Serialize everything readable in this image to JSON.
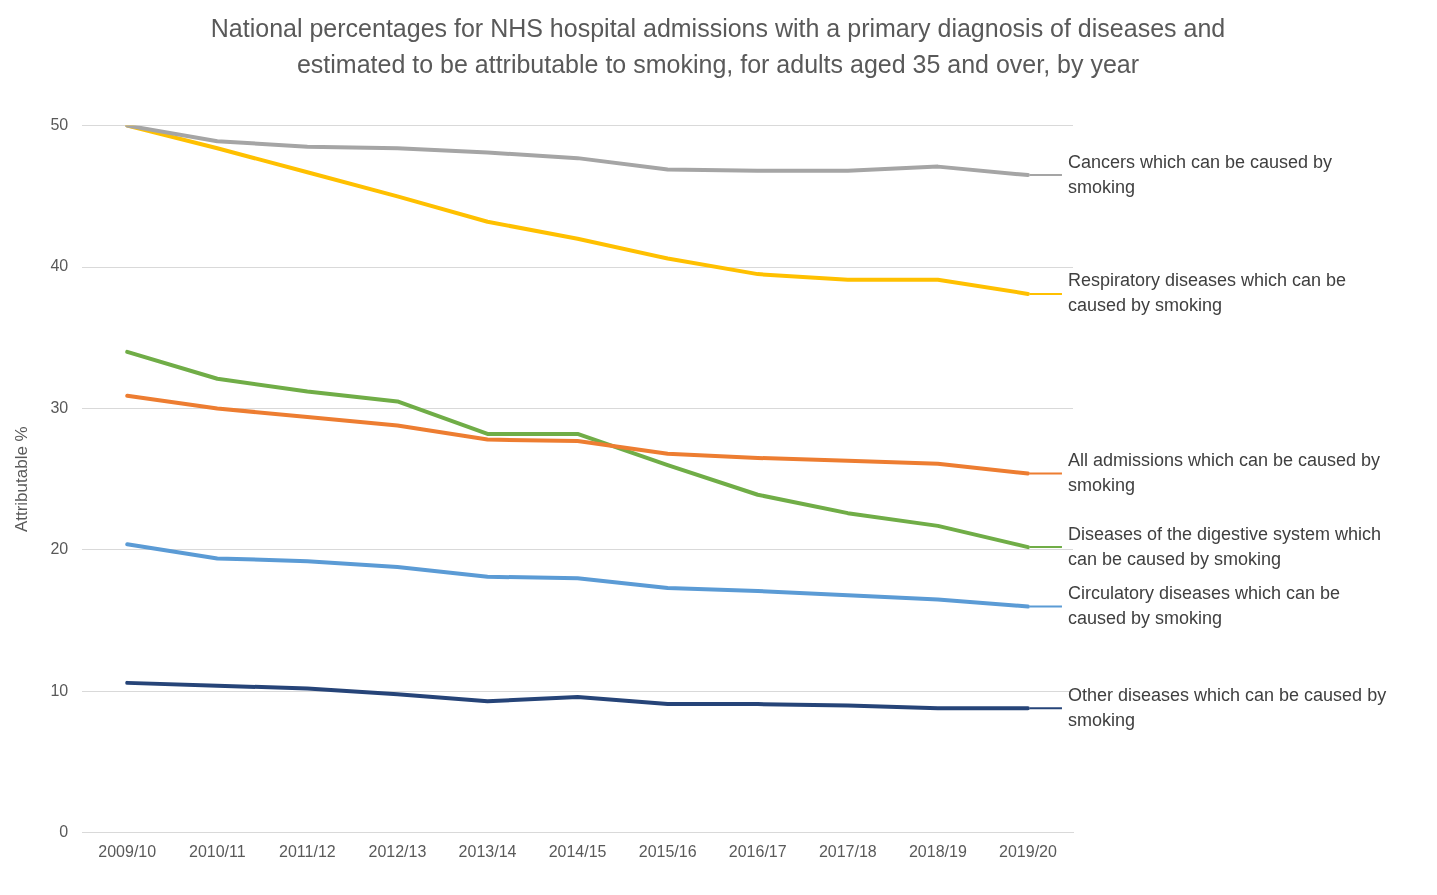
{
  "chart_data": {
    "type": "line",
    "title": "National percentages for NHS hospital admissions with a primary diagnosis of diseases and estimated to be attributable to smoking, for adults aged 35 and over, by year",
    "ylabel": "Attributable %",
    "categories": [
      "2009/10",
      "2010/11",
      "2011/12",
      "2012/13",
      "2013/14",
      "2014/15",
      "2015/16",
      "2016/17",
      "2017/18",
      "2018/19",
      "2019/20"
    ],
    "series": [
      {
        "name": "Cancers which can be caused by smoking",
        "color": "#a5a5a5",
        "values": [
          50.0,
          48.9,
          48.5,
          48.4,
          48.1,
          47.7,
          46.9,
          46.8,
          46.8,
          47.1,
          46.5
        ]
      },
      {
        "name": "Respiratory diseases which can be caused by smoking",
        "color": "#ffc000",
        "values": [
          50.0,
          48.4,
          46.7,
          45.0,
          43.2,
          42.0,
          40.6,
          39.5,
          39.1,
          39.1,
          38.1
        ]
      },
      {
        "name": "All admissions which can be caused by smoking",
        "color": "#ed7d31",
        "values": [
          30.9,
          30.0,
          29.4,
          28.8,
          27.8,
          27.7,
          26.8,
          26.5,
          26.3,
          26.1,
          25.4
        ]
      },
      {
        "name": "Diseases of the digestive system which can be caused by smoking",
        "color": "#70ad47",
        "values": [
          34.0,
          32.1,
          31.2,
          30.5,
          28.2,
          28.2,
          26.0,
          23.9,
          22.6,
          21.7,
          20.2
        ]
      },
      {
        "name": "Circulatory diseases which can be caused by smoking",
        "color": "#5b9bd5",
        "values": [
          20.4,
          19.4,
          19.2,
          18.8,
          18.1,
          18.0,
          17.3,
          17.1,
          16.8,
          16.5,
          16.0
        ]
      },
      {
        "name": "Other diseases which can be caused by smoking",
        "color": "#264478",
        "values": [
          10.6,
          10.4,
          10.2,
          9.8,
          9.3,
          9.6,
          9.1,
          9.1,
          9.0,
          8.8,
          8.8
        ]
      }
    ],
    "ylim": [
      0,
      50
    ],
    "yticks": [
      0,
      10,
      20,
      30,
      40,
      50
    ],
    "grid": "y",
    "legend": "right",
    "marker": "none",
    "line_style": "solid"
  }
}
